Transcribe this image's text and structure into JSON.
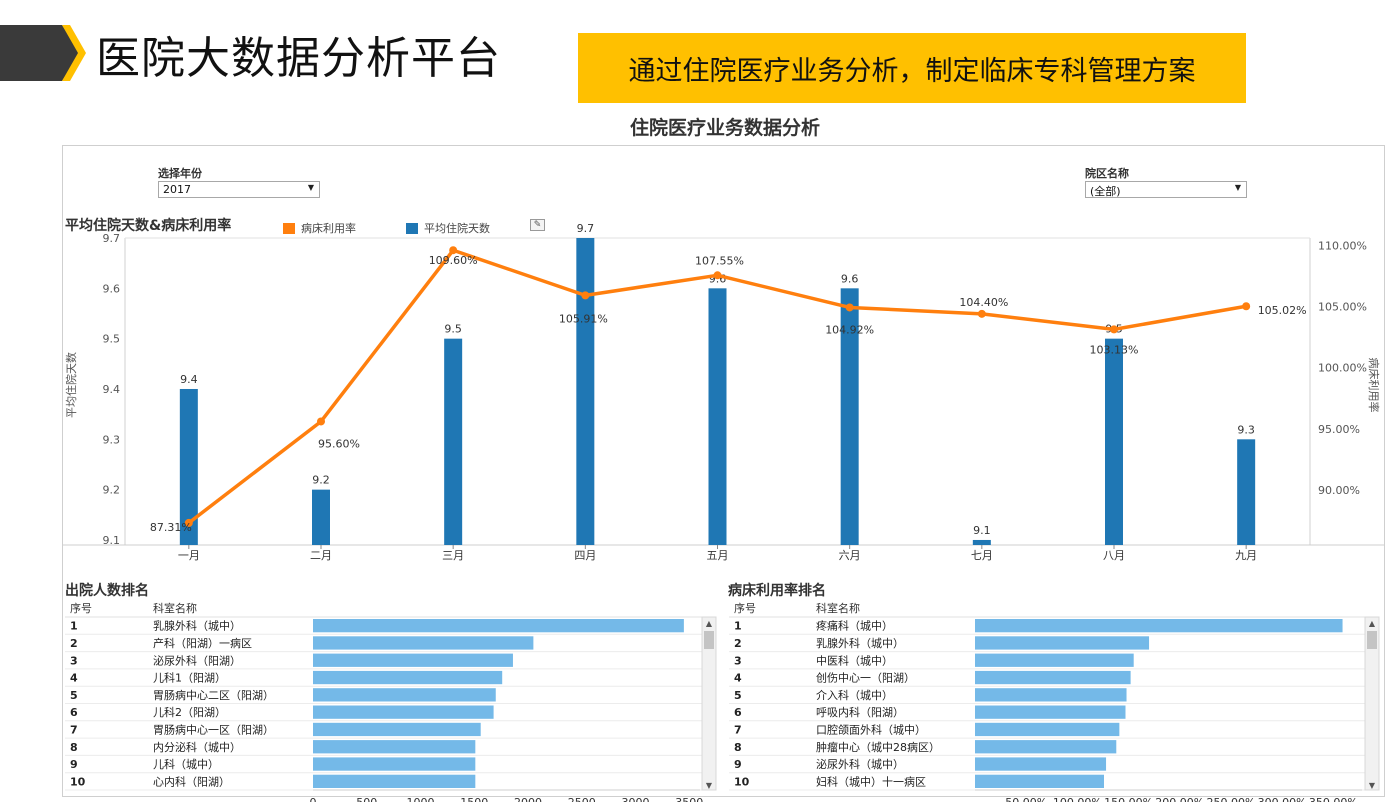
{
  "header": {
    "title": "医院大数据分析平台",
    "banner": "通过住院医疗业务分析，制定临床专科管理方案",
    "dashboard_title": "住院医疗业务数据分析"
  },
  "filters": {
    "year_label": "选择年份",
    "year_value": "2017",
    "district_label": "院区名称",
    "district_value": "(全部)"
  },
  "colors": {
    "accent": "#ffc000",
    "bar": "#1f77b4",
    "line": "#ff7f0e",
    "rank_bar": "#74b9e8",
    "chevron_dark": "#3a3a3a"
  },
  "combo_chart": {
    "title": "平均住院天数&病床利用率",
    "legend": [
      {
        "name": "病床利用率",
        "color": "#ff7f0e"
      },
      {
        "name": "平均住院天数",
        "color": "#1f77b4"
      }
    ]
  },
  "ranking_left": {
    "title": "出院人数排名",
    "col_rank": "序号",
    "col_dept": "科室名称"
  },
  "ranking_right": {
    "title": "病床利用率排名",
    "col_rank": "序号",
    "col_dept": "科室名称"
  },
  "chart_data": [
    {
      "type": "bar",
      "title": "平均住院天数&病床利用率",
      "categories": [
        "一月",
        "二月",
        "三月",
        "四月",
        "五月",
        "六月",
        "七月",
        "八月",
        "九月"
      ],
      "series": [
        {
          "name": "平均住院天数",
          "axis": "left",
          "kind": "bar",
          "values": [
            9.4,
            9.2,
            9.5,
            9.7,
            9.6,
            9.6,
            9.1,
            9.5,
            9.3
          ],
          "labels": [
            "9.4",
            "9.2",
            "9.5",
            "9.7",
            "9.6",
            "9.6",
            "9.1",
            "9.5",
            "9.3"
          ]
        },
        {
          "name": "病床利用率",
          "axis": "right",
          "kind": "line",
          "values": [
            87.31,
            95.6,
            109.6,
            105.91,
            107.55,
            104.92,
            104.4,
            103.13,
            105.02
          ],
          "labels": [
            "87.31%",
            "95.60%",
            "109.60%",
            "105.91%",
            "107.55%",
            "104.92%",
            "104.40%",
            "103.13%",
            "105.02%"
          ]
        }
      ],
      "ylabel": "平均住院天数",
      "y2label": "病床利用率",
      "ylim": [
        9.09,
        9.7
      ],
      "y_ticks": [
        "9.1",
        "9.2",
        "9.3",
        "9.4",
        "9.5",
        "9.6",
        "9.7"
      ],
      "y2lim": [
        85.5,
        110.6
      ],
      "y2_ticks": [
        "90.00%",
        "95.00%",
        "100.00%",
        "105.00%",
        "110.00%"
      ],
      "grid": false,
      "legend_position": "top-left"
    },
    {
      "type": "bar",
      "title": "出院人数排名",
      "orientation": "horizontal",
      "rows": [
        {
          "rank": "1",
          "dept": "乳腺外科（城中）",
          "value": 3450
        },
        {
          "rank": "2",
          "dept": "产科（阳湖）一病区",
          "value": 2050
        },
        {
          "rank": "3",
          "dept": "泌尿外科（阳湖）",
          "value": 1860
        },
        {
          "rank": "4",
          "dept": "儿科1（阳湖）",
          "value": 1760
        },
        {
          "rank": "5",
          "dept": "胃肠病中心二区（阳湖）",
          "value": 1700
        },
        {
          "rank": "6",
          "dept": "儿科2（阳湖）",
          "value": 1680
        },
        {
          "rank": "7",
          "dept": "胃肠病中心一区（阳湖）",
          "value": 1560
        },
        {
          "rank": "8",
          "dept": "内分泌科（城中）",
          "value": 1510
        },
        {
          "rank": "9",
          "dept": "儿科（城中）",
          "value": 1510
        },
        {
          "rank": "10",
          "dept": "心内科（阳湖）",
          "value": 1510
        }
      ],
      "xlim": [
        0,
        3600
      ],
      "x_ticks": [
        "0",
        "500",
        "1000",
        "1500",
        "2000",
        "2500",
        "3000",
        "3500"
      ]
    },
    {
      "type": "bar",
      "title": "病床利用率排名",
      "orientation": "horizontal",
      "rows": [
        {
          "rank": "1",
          "dept": "疼痛科（城中）",
          "value": 359
        },
        {
          "rank": "2",
          "dept": "乳腺外科（城中）",
          "value": 170
        },
        {
          "rank": "3",
          "dept": "中医科（城中）",
          "value": 155
        },
        {
          "rank": "4",
          "dept": "创伤中心一（阳湖）",
          "value": 152
        },
        {
          "rank": "5",
          "dept": "介入科（城中）",
          "value": 148
        },
        {
          "rank": "6",
          "dept": "呼吸内科（阳湖）",
          "value": 147
        },
        {
          "rank": "7",
          "dept": "口腔颌面外科（城中）",
          "value": 141
        },
        {
          "rank": "8",
          "dept": "肿瘤中心（城中28病区）",
          "value": 138
        },
        {
          "rank": "9",
          "dept": "泌尿外科（城中）",
          "value": 128
        },
        {
          "rank": "10",
          "dept": "妇科（城中）十一病区",
          "value": 126
        }
      ],
      "xlim": [
        0,
        378
      ],
      "x_ticks": [
        "50.00%",
        "100.00%",
        "150.00%",
        "200.00%",
        "250.00%",
        "300.00%",
        "350.00%"
      ]
    }
  ]
}
